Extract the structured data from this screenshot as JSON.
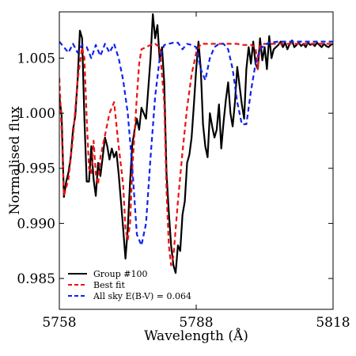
{
  "chart_data": {
    "type": "line",
    "xlabel": "Wavelength (Å)",
    "ylabel": "Normalised flux",
    "xlim": [
      5758,
      5818
    ],
    "ylim": [
      0.9822,
      1.0092
    ],
    "xticks": [
      5758,
      5788,
      5818
    ],
    "yticks": [
      0.985,
      0.99,
      0.995,
      1.0,
      1.005
    ],
    "ytick_labels": [
      "0.985",
      "0.990",
      "0.995",
      "1.000",
      "1.005"
    ],
    "legend_position": "lower-left",
    "grid": false,
    "series": [
      {
        "name": "Group #100",
        "color": "#000000",
        "style": "solid",
        "x": [
          5758.0,
          5758.5,
          5759.0,
          5759.5,
          5760.0,
          5760.5,
          5761.0,
          5761.5,
          5762.0,
          5762.5,
          5763.0,
          5763.5,
          5764.0,
          5764.5,
          5765.0,
          5765.5,
          5766.0,
          5766.5,
          5767.0,
          5767.5,
          5768.0,
          5768.5,
          5769.0,
          5769.5,
          5770.0,
          5770.5,
          5771.0,
          5771.5,
          5772.0,
          5772.5,
          5773.0,
          5773.5,
          5774.0,
          5774.5,
          5775.0,
          5775.5,
          5776.0,
          5776.5,
          5777.0,
          5777.5,
          5778.0,
          5778.5,
          5779.0,
          5779.5,
          5780.0,
          5780.5,
          5781.0,
          5781.5,
          5782.0,
          5782.5,
          5783.0,
          5783.5,
          5784.0,
          5784.5,
          5785.0,
          5785.5,
          5786.0,
          5786.5,
          5787.0,
          5787.5,
          5788.0,
          5788.5,
          5789.0,
          5789.5,
          5790.0,
          5790.5,
          5791.0,
          5791.5,
          5792.0,
          5792.5,
          5793.0,
          5793.5,
          5794.0,
          5794.5,
          5795.0,
          5795.5,
          5796.0,
          5796.5,
          5797.0,
          5797.5,
          5798.0,
          5798.5,
          5799.0,
          5799.5,
          5800.0,
          5800.5,
          5801.0,
          5801.5,
          5802.0,
          5802.5,
          5803.0,
          5803.5,
          5804.0,
          5804.5,
          5805.0,
          5805.5,
          5806.0,
          5806.5,
          5807.0,
          5807.5,
          5808.0,
          5808.5,
          5809.0,
          5809.5,
          5810.0,
          5810.5,
          5811.0,
          5811.5,
          5812.0,
          5812.5,
          5813.0,
          5813.5,
          5814.0,
          5814.5,
          5815.0,
          5815.5,
          5816.0,
          5816.5,
          5817.0,
          5817.5,
          5818.0
        ],
        "y": [
          1.0015,
          0.9998,
          0.9924,
          0.9938,
          0.9946,
          0.996,
          0.9985,
          0.9998,
          1.003,
          1.0075,
          1.0068,
          0.9995,
          0.9938,
          0.9938,
          0.997,
          0.994,
          0.9925,
          0.9955,
          0.9943,
          0.996,
          0.9978,
          0.997,
          0.9958,
          0.9968,
          0.996,
          0.9965,
          0.9945,
          0.992,
          0.9895,
          0.9868,
          0.9895,
          0.9938,
          0.9972,
          0.9985,
          0.9995,
          0.9985,
          1.0005,
          1.0,
          0.9995,
          1.0022,
          1.005,
          1.009,
          1.0068,
          1.008,
          1.0048,
          1.006,
          1.0028,
          0.9945,
          0.991,
          0.988,
          0.9862,
          0.9855,
          0.988,
          0.9875,
          0.9908,
          0.992,
          0.9955,
          0.9962,
          0.9978,
          1.0008,
          1.004,
          1.0065,
          1.004,
          0.999,
          0.997,
          0.996,
          1.0,
          0.9988,
          0.9978,
          0.9985,
          1.0008,
          0.9968,
          0.9992,
          1.0012,
          1.0028,
          1.0,
          0.9988,
          1.001,
          1.0042,
          1.0025,
          1.0008,
          0.9995,
          1.004,
          1.006,
          1.0045,
          1.0065,
          1.0045,
          1.004,
          1.0068,
          1.0048,
          1.006,
          1.004,
          1.007,
          1.005,
          1.0058,
          1.006,
          1.0062,
          1.0065,
          1.006,
          1.0064,
          1.0058,
          1.0063,
          1.0066,
          1.006,
          1.0062,
          1.0064,
          1.0061,
          1.0063,
          1.006,
          1.0064,
          1.0062,
          1.0063,
          1.0061,
          1.0064,
          1.0062,
          1.006,
          1.0063,
          1.0061,
          1.006,
          1.0062,
          1.0063
        ]
      },
      {
        "name": "Best fit",
        "color": "#ee1111",
        "style": "dashed",
        "x": [
          5758,
          5758.5,
          5759,
          5760,
          5761,
          5762,
          5763,
          5763.5,
          5764,
          5764.5,
          5765,
          5765.5,
          5766,
          5766.5,
          5767,
          5768,
          5769,
          5770,
          5771,
          5772,
          5772.5,
          5773,
          5773.5,
          5774,
          5775,
          5775.5,
          5776,
          5777,
          5778,
          5779,
          5780,
          5781,
          5781.5,
          5782,
          5782.5,
          5783,
          5784,
          5785,
          5786,
          5787,
          5788,
          5789,
          5790,
          5791,
          5792,
          5793,
          5794,
          5795,
          5796,
          5797,
          5798,
          5799,
          5800,
          5801,
          5801.5,
          5802,
          5803,
          5804,
          5806,
          5810,
          5818
        ],
        "y": [
          1.0032,
          0.9985,
          0.9925,
          0.994,
          0.9978,
          1.003,
          1.006,
          1.005,
          0.9995,
          0.995,
          0.9945,
          0.9975,
          0.9945,
          0.9935,
          0.996,
          0.998,
          1.0,
          1.001,
          0.997,
          0.9935,
          0.9895,
          0.9885,
          0.99,
          0.995,
          1.0015,
          1.0045,
          1.0058,
          1.006,
          1.0062,
          1.0063,
          1.006,
          1.001,
          0.993,
          0.988,
          0.9862,
          0.987,
          0.992,
          0.9965,
          1.0005,
          1.0035,
          1.0055,
          1.0063,
          1.0063,
          1.0063,
          1.0063,
          1.0063,
          1.0063,
          1.0063,
          1.0063,
          1.0063,
          1.0062,
          1.0062,
          1.0062,
          1.006,
          1.004,
          1.0062,
          1.0063,
          1.0063,
          1.0063,
          1.0063,
          1.0063
        ]
      },
      {
        "name": "All sky E(B-V) = 0.064",
        "color": "#1122ee",
        "style": "dashed",
        "x": [
          5758,
          5759,
          5760,
          5761,
          5762,
          5763,
          5764,
          5765,
          5766,
          5767,
          5768,
          5769,
          5770,
          5771,
          5772,
          5773,
          5774,
          5775,
          5776,
          5777,
          5778,
          5779,
          5780,
          5781,
          5782,
          5783,
          5784,
          5785,
          5786,
          5787,
          5788,
          5789,
          5790,
          5791,
          5792,
          5793,
          5794,
          5795,
          5796,
          5797,
          5798,
          5799,
          5800,
          5801,
          5802,
          5803,
          5804,
          5806,
          5810,
          5818
        ],
        "y": [
          1.0065,
          1.006,
          1.0055,
          1.0063,
          1.0055,
          1.0062,
          1.006,
          1.005,
          1.0062,
          1.0052,
          1.0063,
          1.0055,
          1.0063,
          1.005,
          1.003,
          1.0,
          0.995,
          0.989,
          0.988,
          0.99,
          0.996,
          1.0015,
          1.005,
          1.0062,
          1.0063,
          1.0064,
          1.0064,
          1.0058,
          1.0063,
          1.0062,
          1.006,
          1.004,
          1.003,
          1.005,
          1.006,
          1.0063,
          1.0063,
          1.0058,
          1.004,
          1.001,
          0.999,
          0.999,
          1.002,
          1.0045,
          1.0058,
          1.0062,
          1.0064,
          1.0065,
          1.0065,
          1.0065
        ]
      }
    ]
  }
}
